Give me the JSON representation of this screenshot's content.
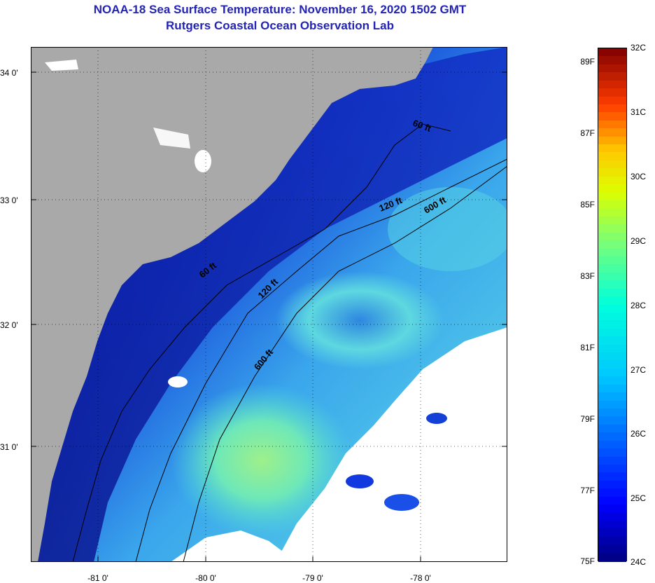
{
  "title": "NOAA-18 Sea Surface Temperature:  November 16, 2020 1502 GMT",
  "subtitle": "Rutgers Coastal Ocean Observation Lab",
  "map": {
    "lat_ticks": [
      {
        "label": "34 0'",
        "value": 34.0
      },
      {
        "label": "33 0'",
        "value": 33.0
      },
      {
        "label": "32 0'",
        "value": 32.0
      },
      {
        "label": "31 0'",
        "value": 31.0
      }
    ],
    "lon_ticks": [
      {
        "label": "-81 0'",
        "value": -81.0
      },
      {
        "label": "-80 0'",
        "value": -80.0
      },
      {
        "label": "-79 0'",
        "value": -79.0
      },
      {
        "label": "-78 0'",
        "value": -78.0
      }
    ],
    "contours": [
      {
        "label": "60 ft"
      },
      {
        "label": "60 ft"
      },
      {
        "label": "120 ft"
      },
      {
        "label": "120 ft"
      },
      {
        "label": "600 ft"
      },
      {
        "label": "600 ft"
      }
    ],
    "colors": {
      "land": "#a9a9a9",
      "cloud": "#ffffff",
      "cold": "#0a1a9e",
      "warm": "#62e8d8"
    }
  },
  "colorbar": {
    "range_c": [
      24,
      32
    ],
    "fahrenheit": [
      "89F",
      "87F",
      "85F",
      "83F",
      "81F",
      "79F",
      "77F",
      "75F"
    ],
    "celsius": [
      "32C",
      "31C",
      "30C",
      "29C",
      "28C",
      "27C",
      "26C",
      "25C",
      "24C"
    ]
  }
}
